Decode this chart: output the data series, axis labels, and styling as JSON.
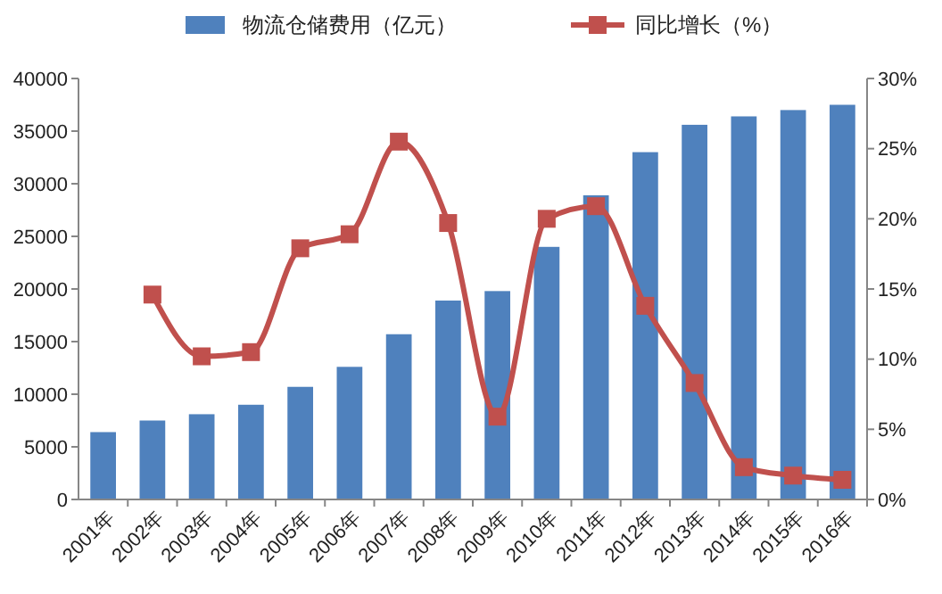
{
  "chart_data": {
    "type": "bar",
    "categories": [
      "2001年",
      "2002年",
      "2003年",
      "2004年",
      "2005年",
      "2006年",
      "2007年",
      "2008年",
      "2009年",
      "2010年",
      "2011年",
      "2012年",
      "2013年",
      "2014年",
      "2015年",
      "2016年"
    ],
    "series": [
      {
        "name": "物流仓储费用（亿元）",
        "color": "#4f81bd",
        "values": [
          6400,
          7500,
          8100,
          9000,
          10700,
          12600,
          15700,
          18900,
          19800,
          24000,
          28900,
          33000,
          35600,
          36400,
          37000,
          37500
        ]
      },
      {
        "name": "同比增长（%）",
        "type": "line",
        "axis": "y2",
        "color": "#c0504d",
        "marker": "square",
        "values": [
          null,
          14.6,
          10.2,
          10.5,
          17.9,
          18.9,
          25.5,
          19.7,
          5.9,
          20.0,
          20.9,
          13.8,
          8.3,
          2.3,
          1.7,
          1.4
        ]
      }
    ],
    "ylim": [
      0,
      40000
    ],
    "yticks": [
      0,
      5000,
      10000,
      15000,
      20000,
      25000,
      30000,
      35000,
      40000
    ],
    "y2lim": [
      0,
      30
    ],
    "y2ticks": [
      {
        "value": 0,
        "label": "0%"
      },
      {
        "value": 5,
        "label": "5%"
      },
      {
        "value": 10,
        "label": "10%"
      },
      {
        "value": 15,
        "label": "15%"
      },
      {
        "value": 20,
        "label": "20%"
      },
      {
        "value": 25,
        "label": "25%"
      },
      {
        "value": 30,
        "label": "30%"
      }
    ],
    "legend": "top"
  }
}
